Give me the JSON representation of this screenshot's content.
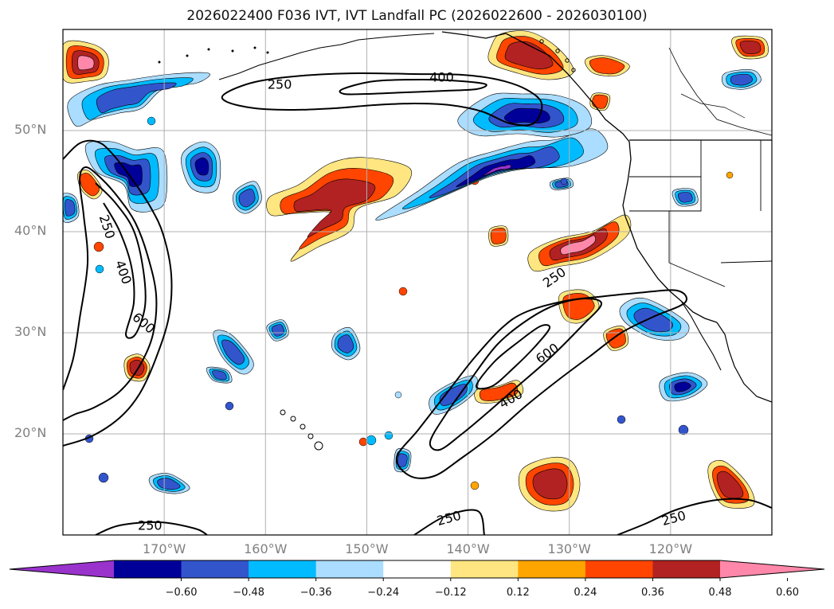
{
  "title": "2026022400 F036 IVT, IVT Landfall PC (2026022600 - 2026030100)",
  "map": {
    "lon_range": [
      -180,
      -110
    ],
    "lat_range": [
      10,
      60
    ],
    "lon_ticks": [
      {
        "value": -170,
        "label": "170°W"
      },
      {
        "value": -160,
        "label": "160°W"
      },
      {
        "value": -150,
        "label": "150°W"
      },
      {
        "value": -140,
        "label": "140°W"
      },
      {
        "value": -130,
        "label": "130°W"
      },
      {
        "value": -120,
        "label": "120°W"
      }
    ],
    "lat_ticks": [
      {
        "value": 20,
        "label": "20°N"
      },
      {
        "value": 30,
        "label": "30°N"
      },
      {
        "value": 40,
        "label": "40°N"
      },
      {
        "value": 50,
        "label": "50°N"
      }
    ],
    "gridlines": true
  },
  "contours": {
    "levels": [
      250,
      400,
      600
    ],
    "labels": [
      {
        "text": "250",
        "lon": -158.6,
        "lat": 54.6,
        "rot": 0
      },
      {
        "text": "400",
        "lon": -142.6,
        "lat": 55.3,
        "rot": 0
      },
      {
        "text": "250",
        "lon": -175.6,
        "lat": 40.5,
        "rot": 72
      },
      {
        "text": "400",
        "lon": -174.0,
        "lat": 36.0,
        "rot": 70
      },
      {
        "text": "600",
        "lon": -172.0,
        "lat": 31.0,
        "rot": 40
      },
      {
        "text": "250",
        "lon": -131.5,
        "lat": 35.5,
        "rot": -35
      },
      {
        "text": "600",
        "lon": -132.2,
        "lat": 28.0,
        "rot": -35
      },
      {
        "text": "400",
        "lon": -135.8,
        "lat": 23.5,
        "rot": -30
      },
      {
        "text": "250",
        "lon": -171.4,
        "lat": 11.0,
        "rot": 0
      },
      {
        "text": "250",
        "lon": -141.9,
        "lat": 11.7,
        "rot": -15
      },
      {
        "text": "250",
        "lon": -119.7,
        "lat": 11.7,
        "rot": -15
      }
    ]
  },
  "colorbar": {
    "levels": [
      "−0.60",
      "−0.48",
      "−0.36",
      "−0.24",
      "−0.12",
      "0.12",
      "0.24",
      "0.36",
      "0.48",
      "0.60"
    ],
    "colors": [
      "#9933cc",
      "#000099",
      "#3355cc",
      "#00bbff",
      "#aaddff",
      "#ffffff",
      "#ffe680",
      "#ffa500",
      "#ff4500",
      "#b22222",
      "#ff88aa"
    ],
    "extend": "both"
  }
}
